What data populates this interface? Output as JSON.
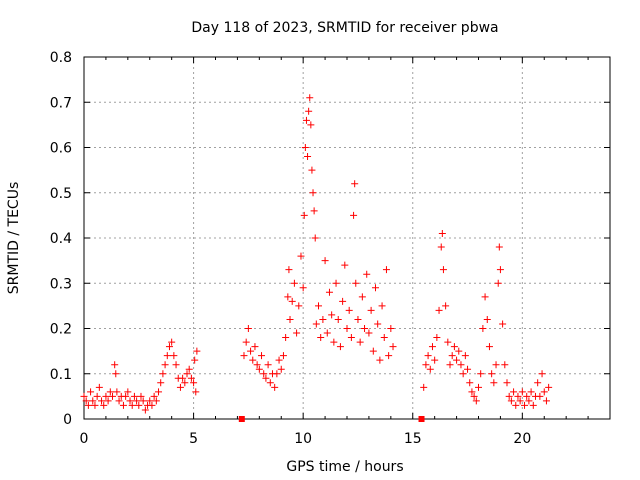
{
  "chart_data": {
    "type": "scatter",
    "title": "Day 118 of 2023, SRMTID for receiver pbwa",
    "xlabel": "GPS time / hours",
    "ylabel": "SRMTID / TECUs",
    "xlim": [
      0,
      24
    ],
    "ylim": [
      0,
      0.8
    ],
    "x_ticks": [
      0,
      5,
      10,
      15,
      20
    ],
    "x_tick_labels": [
      "0",
      "5",
      "10",
      "15",
      "20"
    ],
    "y_ticks": [
      0,
      0.1,
      0.2,
      0.3,
      0.4,
      0.5,
      0.6,
      0.7,
      0.8
    ],
    "y_tick_labels": [
      "0",
      "0.1",
      "0.2",
      "0.3",
      "0.4",
      "0.5",
      "0.6",
      "0.7",
      "0.8"
    ],
    "grid": true,
    "marker": "plus",
    "color": "#ff0000",
    "series": [
      {
        "name": "SRMTID",
        "points": [
          [
            0.0,
            0.05
          ],
          [
            0.1,
            0.04
          ],
          [
            0.2,
            0.03
          ],
          [
            0.3,
            0.06
          ],
          [
            0.4,
            0.04
          ],
          [
            0.5,
            0.03
          ],
          [
            0.6,
            0.05
          ],
          [
            0.7,
            0.07
          ],
          [
            0.8,
            0.04
          ],
          [
            0.9,
            0.03
          ],
          [
            1.0,
            0.05
          ],
          [
            1.1,
            0.04
          ],
          [
            1.2,
            0.06
          ],
          [
            1.3,
            0.05
          ],
          [
            1.4,
            0.12
          ],
          [
            1.45,
            0.1
          ],
          [
            1.5,
            0.06
          ],
          [
            1.6,
            0.04
          ],
          [
            1.7,
            0.05
          ],
          [
            1.8,
            0.03
          ],
          [
            1.9,
            0.05
          ],
          [
            2.0,
            0.06
          ],
          [
            2.1,
            0.04
          ],
          [
            2.2,
            0.03
          ],
          [
            2.3,
            0.05
          ],
          [
            2.4,
            0.04
          ],
          [
            2.5,
            0.03
          ],
          [
            2.6,
            0.05
          ],
          [
            2.7,
            0.04
          ],
          [
            2.8,
            0.02
          ],
          [
            2.9,
            0.03
          ],
          [
            3.0,
            0.04
          ],
          [
            3.1,
            0.03
          ],
          [
            3.2,
            0.05
          ],
          [
            3.3,
            0.04
          ],
          [
            3.4,
            0.06
          ],
          [
            3.5,
            0.08
          ],
          [
            3.6,
            0.1
          ],
          [
            3.7,
            0.12
          ],
          [
            3.8,
            0.14
          ],
          [
            3.9,
            0.16
          ],
          [
            4.0,
            0.17
          ],
          [
            4.1,
            0.14
          ],
          [
            4.2,
            0.12
          ],
          [
            4.3,
            0.09
          ],
          [
            4.4,
            0.07
          ],
          [
            4.5,
            0.09
          ],
          [
            4.6,
            0.08
          ],
          [
            4.7,
            0.1
          ],
          [
            4.8,
            0.11
          ],
          [
            4.9,
            0.09
          ],
          [
            5.0,
            0.08
          ],
          [
            5.05,
            0.13
          ],
          [
            5.1,
            0.06
          ],
          [
            5.15,
            0.15
          ],
          [
            7.2,
            0.0
          ],
          [
            7.3,
            0.14
          ],
          [
            7.4,
            0.17
          ],
          [
            7.5,
            0.2
          ],
          [
            7.6,
            0.15
          ],
          [
            7.7,
            0.13
          ],
          [
            7.8,
            0.16
          ],
          [
            7.9,
            0.12
          ],
          [
            8.0,
            0.11
          ],
          [
            8.1,
            0.14
          ],
          [
            8.2,
            0.1
          ],
          [
            8.3,
            0.09
          ],
          [
            8.4,
            0.12
          ],
          [
            8.5,
            0.08
          ],
          [
            8.6,
            0.1
          ],
          [
            8.7,
            0.07
          ],
          [
            8.8,
            0.1
          ],
          [
            8.9,
            0.13
          ],
          [
            9.0,
            0.11
          ],
          [
            9.1,
            0.14
          ],
          [
            9.2,
            0.18
          ],
          [
            9.3,
            0.27
          ],
          [
            9.35,
            0.33
          ],
          [
            9.4,
            0.22
          ],
          [
            9.5,
            0.26
          ],
          [
            9.6,
            0.3
          ],
          [
            9.7,
            0.19
          ],
          [
            9.8,
            0.25
          ],
          [
            9.9,
            0.36
          ],
          [
            10.0,
            0.29
          ],
          [
            10.05,
            0.45
          ],
          [
            10.1,
            0.6
          ],
          [
            10.15,
            0.66
          ],
          [
            10.2,
            0.58
          ],
          [
            10.25,
            0.68
          ],
          [
            10.3,
            0.71
          ],
          [
            10.35,
            0.65
          ],
          [
            10.4,
            0.55
          ],
          [
            10.45,
            0.5
          ],
          [
            10.5,
            0.46
          ],
          [
            10.55,
            0.4
          ],
          [
            10.6,
            0.21
          ],
          [
            10.7,
            0.25
          ],
          [
            10.8,
            0.18
          ],
          [
            10.9,
            0.22
          ],
          [
            11.0,
            0.35
          ],
          [
            11.1,
            0.19
          ],
          [
            11.2,
            0.28
          ],
          [
            11.3,
            0.23
          ],
          [
            11.4,
            0.17
          ],
          [
            11.5,
            0.3
          ],
          [
            11.6,
            0.22
          ],
          [
            11.7,
            0.16
          ],
          [
            11.8,
            0.26
          ],
          [
            11.9,
            0.34
          ],
          [
            12.0,
            0.2
          ],
          [
            12.1,
            0.24
          ],
          [
            12.2,
            0.18
          ],
          [
            12.3,
            0.45
          ],
          [
            12.35,
            0.52
          ],
          [
            12.4,
            0.3
          ],
          [
            12.5,
            0.22
          ],
          [
            12.6,
            0.17
          ],
          [
            12.7,
            0.27
          ],
          [
            12.8,
            0.2
          ],
          [
            12.9,
            0.32
          ],
          [
            13.0,
            0.19
          ],
          [
            13.1,
            0.24
          ],
          [
            13.2,
            0.15
          ],
          [
            13.3,
            0.29
          ],
          [
            13.4,
            0.21
          ],
          [
            13.5,
            0.13
          ],
          [
            13.6,
            0.25
          ],
          [
            13.7,
            0.18
          ],
          [
            13.8,
            0.33
          ],
          [
            13.9,
            0.14
          ],
          [
            14.0,
            0.2
          ],
          [
            14.1,
            0.16
          ],
          [
            15.4,
            0.0
          ],
          [
            15.5,
            0.07
          ],
          [
            15.6,
            0.12
          ],
          [
            15.7,
            0.14
          ],
          [
            15.8,
            0.11
          ],
          [
            15.9,
            0.16
          ],
          [
            16.0,
            0.13
          ],
          [
            16.1,
            0.18
          ],
          [
            16.2,
            0.24
          ],
          [
            16.3,
            0.38
          ],
          [
            16.35,
            0.41
          ],
          [
            16.4,
            0.33
          ],
          [
            16.5,
            0.25
          ],
          [
            16.6,
            0.17
          ],
          [
            16.7,
            0.12
          ],
          [
            16.8,
            0.14
          ],
          [
            16.9,
            0.16
          ],
          [
            17.0,
            0.13
          ],
          [
            17.1,
            0.15
          ],
          [
            17.2,
            0.12
          ],
          [
            17.3,
            0.1
          ],
          [
            17.4,
            0.14
          ],
          [
            17.5,
            0.11
          ],
          [
            17.6,
            0.08
          ],
          [
            17.7,
            0.06
          ],
          [
            17.8,
            0.05
          ],
          [
            17.9,
            0.04
          ],
          [
            18.0,
            0.07
          ],
          [
            18.1,
            0.1
          ],
          [
            18.2,
            0.2
          ],
          [
            18.3,
            0.27
          ],
          [
            18.4,
            0.22
          ],
          [
            18.5,
            0.16
          ],
          [
            18.6,
            0.1
          ],
          [
            18.7,
            0.08
          ],
          [
            18.8,
            0.12
          ],
          [
            18.9,
            0.3
          ],
          [
            18.95,
            0.38
          ],
          [
            19.0,
            0.33
          ],
          [
            19.1,
            0.21
          ],
          [
            19.2,
            0.12
          ],
          [
            19.3,
            0.08
          ],
          [
            19.4,
            0.05
          ],
          [
            19.5,
            0.04
          ],
          [
            19.6,
            0.06
          ],
          [
            19.7,
            0.03
          ],
          [
            19.8,
            0.05
          ],
          [
            19.9,
            0.04
          ],
          [
            20.0,
            0.06
          ],
          [
            20.1,
            0.03
          ],
          [
            20.2,
            0.05
          ],
          [
            20.3,
            0.04
          ],
          [
            20.4,
            0.06
          ],
          [
            20.5,
            0.03
          ],
          [
            20.6,
            0.05
          ],
          [
            20.7,
            0.08
          ],
          [
            20.8,
            0.05
          ],
          [
            20.9,
            0.1
          ],
          [
            21.0,
            0.06
          ],
          [
            21.1,
            0.04
          ],
          [
            21.2,
            0.07
          ]
        ]
      }
    ]
  }
}
